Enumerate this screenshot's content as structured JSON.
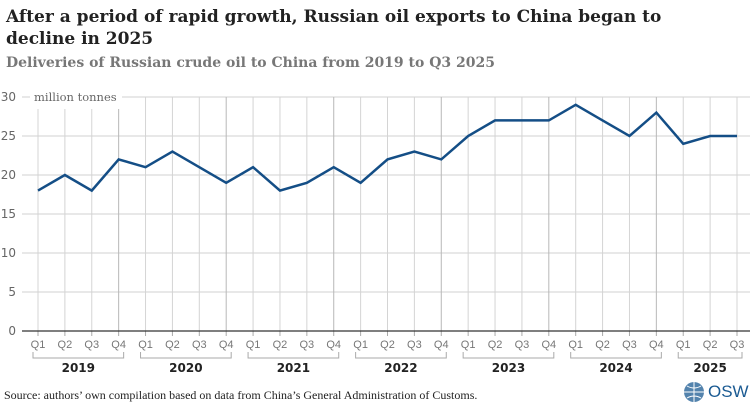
{
  "title": "After a period of rapid growth, Russian oil exports to China began to decline in 2025",
  "subtitle": "Deliveries of Russian crude oil to China from 2019 to Q3 2025",
  "source": "Source: authors’ own compilation based on data from China’s General Administration of Customs.",
  "logo": "OSW",
  "chart_data": {
    "type": "line",
    "title": "After a period of rapid growth, Russian oil exports to China began to decline in 2025",
    "ylabel": "million tonnes",
    "ylim": [
      0,
      30
    ],
    "yticks": [
      0,
      5,
      10,
      15,
      20,
      25,
      30
    ],
    "grid": true,
    "line_color": "#144e86",
    "years": [
      "2019",
      "2020",
      "2021",
      "2022",
      "2023",
      "2024",
      "2025"
    ],
    "categories": [
      "Q1",
      "Q2",
      "Q3",
      "Q4",
      "Q1",
      "Q2",
      "Q3",
      "Q4",
      "Q1",
      "Q2",
      "Q3",
      "Q4",
      "Q1",
      "Q2",
      "Q3",
      "Q4",
      "Q1",
      "Q2",
      "Q3",
      "Q4",
      "Q1",
      "Q2",
      "Q3",
      "Q4",
      "Q1",
      "Q2",
      "Q3"
    ],
    "values": [
      18,
      20,
      18,
      22,
      21,
      23,
      21,
      19,
      21,
      18,
      19,
      21,
      19,
      22,
      23,
      22,
      25,
      27,
      27,
      27,
      29,
      27,
      25,
      28,
      24,
      25,
      25
    ]
  }
}
